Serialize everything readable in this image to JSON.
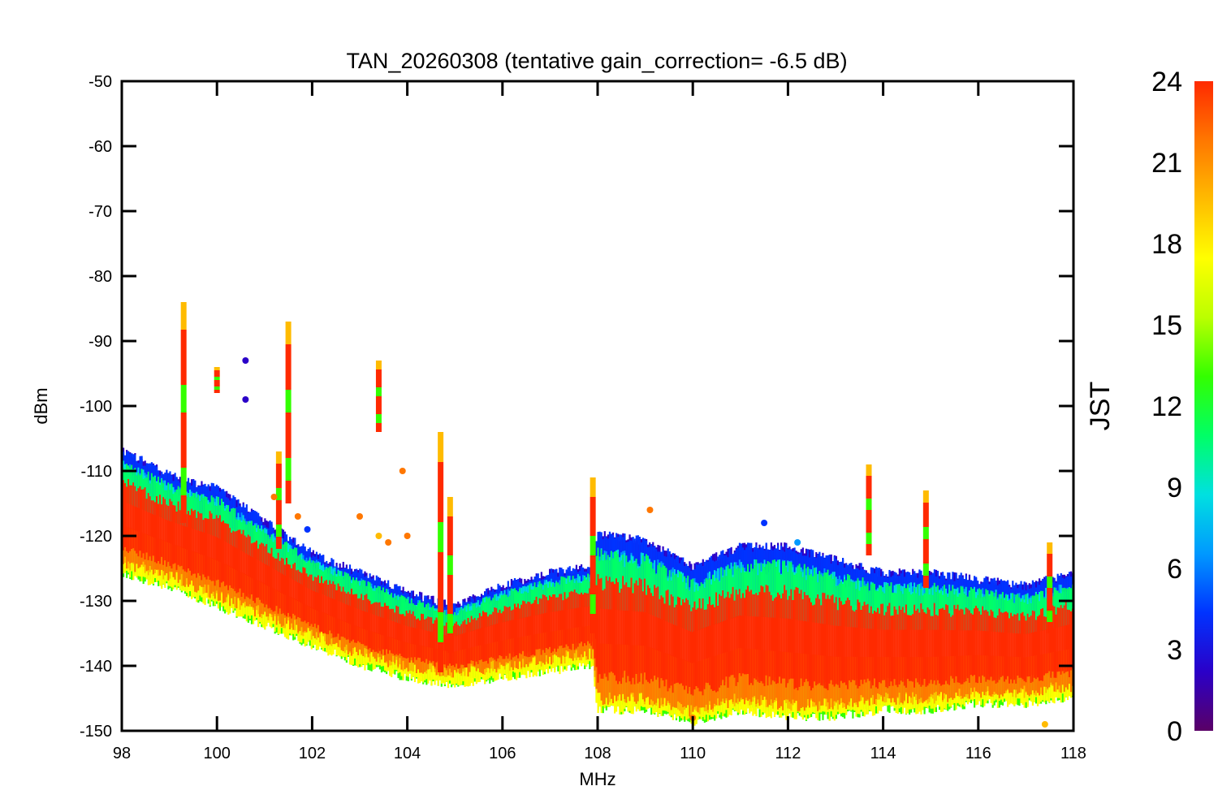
{
  "chart_data": {
    "type": "scatter",
    "title": "TAN_20260308 (tentative gain_correction= -6.5 dB)",
    "xlabel": "MHz",
    "ylabel": "dBm",
    "xlim": [
      98,
      118
    ],
    "ylim": [
      -150,
      -50
    ],
    "xticks": [
      98,
      100,
      102,
      104,
      106,
      108,
      110,
      112,
      114,
      116,
      118
    ],
    "yticks": [
      -50,
      -60,
      -70,
      -80,
      -90,
      -100,
      -110,
      -120,
      -130,
      -140,
      -150
    ],
    "x_tick_labels": [
      "98",
      "100",
      "102",
      "104",
      "106",
      "108",
      "110",
      "112",
      "114",
      "116",
      "118"
    ],
    "y_tick_labels": [
      "-50",
      "-60",
      "-70",
      "-80",
      "-90",
      "-100",
      "-110",
      "-120",
      "-130",
      "-140",
      "-150"
    ],
    "colorbar": {
      "label": "JST",
      "range": [
        0,
        24
      ],
      "ticks": [
        0,
        3,
        6,
        9,
        12,
        15,
        18,
        21,
        24
      ],
      "tick_labels": [
        "0",
        "3",
        "6",
        "9",
        "12",
        "15",
        "18",
        "21",
        "24"
      ],
      "colors": [
        "#5a0066",
        "#2a00c8",
        "#0033ff",
        "#0099ff",
        "#00e0e0",
        "#00ff66",
        "#33ff00",
        "#bbff00",
        "#ffff00",
        "#ffbb00",
        "#ff7700",
        "#ff2a00"
      ]
    },
    "noise_floor": [
      {
        "x": 98.0,
        "low": -125,
        "high": -106
      },
      {
        "x": 99.0,
        "low": -127,
        "high": -110
      },
      {
        "x": 100.0,
        "low": -130,
        "high": -112
      },
      {
        "x": 101.0,
        "low": -133,
        "high": -117
      },
      {
        "x": 102.0,
        "low": -136,
        "high": -122
      },
      {
        "x": 103.0,
        "low": -139,
        "high": -125
      },
      {
        "x": 104.0,
        "low": -141,
        "high": -128
      },
      {
        "x": 104.9,
        "low": -142,
        "high": -130
      },
      {
        "x": 105.0,
        "low": -142,
        "high": -130
      },
      {
        "x": 106.0,
        "low": -141,
        "high": -127
      },
      {
        "x": 107.0,
        "low": -140,
        "high": -125
      },
      {
        "x": 107.9,
        "low": -139,
        "high": -124
      },
      {
        "x": 108.0,
        "low": -146,
        "high": -119
      },
      {
        "x": 109.0,
        "low": -146,
        "high": -120
      },
      {
        "x": 110.0,
        "low": -148,
        "high": -124
      },
      {
        "x": 111.0,
        "low": -146,
        "high": -121
      },
      {
        "x": 112.0,
        "low": -147,
        "high": -121
      },
      {
        "x": 113.0,
        "low": -147,
        "high": -123
      },
      {
        "x": 114.0,
        "low": -146,
        "high": -125
      },
      {
        "x": 115.0,
        "low": -146,
        "high": -125
      },
      {
        "x": 116.0,
        "low": -145,
        "high": -126
      },
      {
        "x": 117.0,
        "low": -145,
        "high": -127
      },
      {
        "x": 118.0,
        "low": -144,
        "high": -125
      }
    ],
    "spectral_lines": [
      {
        "x": 99.3,
        "top": -84,
        "bottom": -118
      },
      {
        "x": 100.0,
        "top": -94,
        "bottom": -98
      },
      {
        "x": 101.3,
        "top": -107,
        "bottom": -122
      },
      {
        "x": 101.5,
        "top": -87,
        "bottom": -115
      },
      {
        "x": 103.4,
        "top": -93,
        "bottom": -104
      },
      {
        "x": 104.7,
        "top": -104,
        "bottom": -141
      },
      {
        "x": 104.9,
        "top": -114,
        "bottom": -138
      },
      {
        "x": 107.9,
        "top": -111,
        "bottom": -135
      },
      {
        "x": 113.7,
        "top": -109,
        "bottom": -123
      },
      {
        "x": 114.9,
        "top": -113,
        "bottom": -128
      },
      {
        "x": 117.5,
        "top": -121,
        "bottom": -135
      }
    ],
    "outliers": [
      {
        "x": 100.6,
        "y": -93,
        "t": 3
      },
      {
        "x": 100.6,
        "y": -99,
        "t": 3
      },
      {
        "x": 101.2,
        "y": -114,
        "t": 21
      },
      {
        "x": 101.7,
        "y": -117,
        "t": 21
      },
      {
        "x": 101.9,
        "y": -119,
        "t": 4
      },
      {
        "x": 103.0,
        "y": -117,
        "t": 21
      },
      {
        "x": 103.6,
        "y": -121,
        "t": 22
      },
      {
        "x": 103.9,
        "y": -110,
        "t": 22
      },
      {
        "x": 104.0,
        "y": -120,
        "t": 22
      },
      {
        "x": 103.4,
        "y": -120,
        "t": 20
      },
      {
        "x": 109.1,
        "y": -116,
        "t": 22
      },
      {
        "x": 111.5,
        "y": -118,
        "t": 5
      },
      {
        "x": 112.2,
        "y": -121,
        "t": 6
      },
      {
        "x": 110.0,
        "y": -148,
        "t": 22
      },
      {
        "x": 117.4,
        "y": -149,
        "t": 19
      }
    ]
  }
}
